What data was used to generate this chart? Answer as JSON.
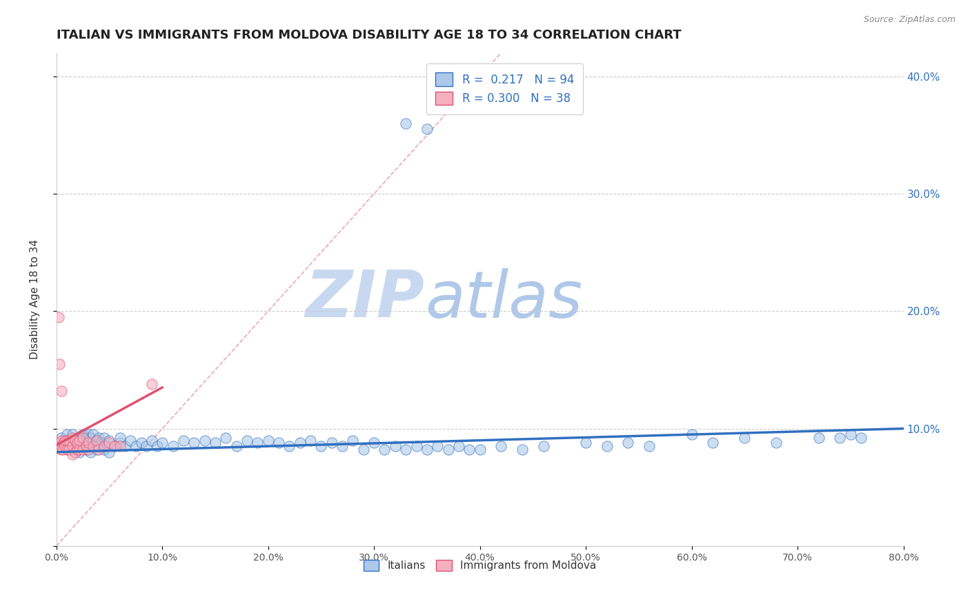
{
  "title": "ITALIAN VS IMMIGRANTS FROM MOLDOVA DISABILITY AGE 18 TO 34 CORRELATION CHART",
  "source": "Source: ZipAtlas.com",
  "xlabel": "",
  "ylabel": "Disability Age 18 to 34",
  "R_italian": 0.217,
  "N_italian": 94,
  "R_moldova": 0.3,
  "N_moldova": 38,
  "xlim": [
    0.0,
    0.8
  ],
  "ylim": [
    0.0,
    0.42
  ],
  "xticks": [
    0.0,
    0.1,
    0.2,
    0.3,
    0.4,
    0.5,
    0.6,
    0.7,
    0.8
  ],
  "yticks": [
    0.0,
    0.1,
    0.2,
    0.3,
    0.4
  ],
  "ytick_labels_right": [
    "",
    "10.0%",
    "20.0%",
    "30.0%",
    "40.0%"
  ],
  "xtick_labels": [
    "0.0%",
    "10.0%",
    "20.0%",
    "30.0%",
    "40.0%",
    "50.0%",
    "60.0%",
    "70.0%",
    "80.0%"
  ],
  "color_italian": "#adc8e8",
  "color_moldova": "#f5b0c0",
  "color_trend_italian": "#3070c0",
  "color_trend_moldova": "#e05070",
  "color_diag": "#e88090",
  "watermark_zip_color": "#c8d8f0",
  "watermark_atlas_color": "#b0c8e8",
  "title_color": "#222222",
  "bg_color": "#ffffff",
  "legend_label_color": "#3070c0",
  "bottom_legend_label_color": "#333333",
  "italian_scatter_x": [
    0.005,
    0.008,
    0.01,
    0.01,
    0.012,
    0.013,
    0.015,
    0.015,
    0.018,
    0.018,
    0.02,
    0.02,
    0.022,
    0.022,
    0.025,
    0.025,
    0.025,
    0.028,
    0.028,
    0.03,
    0.03,
    0.03,
    0.032,
    0.032,
    0.035,
    0.035,
    0.038,
    0.038,
    0.04,
    0.04,
    0.042,
    0.045,
    0.045,
    0.048,
    0.05,
    0.05,
    0.055,
    0.06,
    0.06,
    0.065,
    0.07,
    0.075,
    0.08,
    0.085,
    0.09,
    0.095,
    0.1,
    0.11,
    0.12,
    0.13,
    0.14,
    0.15,
    0.16,
    0.17,
    0.18,
    0.19,
    0.2,
    0.21,
    0.22,
    0.23,
    0.24,
    0.25,
    0.26,
    0.27,
    0.28,
    0.29,
    0.3,
    0.31,
    0.32,
    0.33,
    0.34,
    0.35,
    0.36,
    0.37,
    0.38,
    0.39,
    0.4,
    0.42,
    0.44,
    0.46,
    0.5,
    0.52,
    0.54,
    0.56,
    0.6,
    0.62,
    0.65,
    0.68,
    0.72,
    0.74,
    0.75,
    0.76,
    0.33,
    0.35
  ],
  "italian_scatter_y": [
    0.092,
    0.088,
    0.085,
    0.095,
    0.082,
    0.09,
    0.088,
    0.095,
    0.082,
    0.09,
    0.085,
    0.092,
    0.08,
    0.092,
    0.085,
    0.09,
    0.095,
    0.082,
    0.092,
    0.085,
    0.09,
    0.095,
    0.08,
    0.092,
    0.085,
    0.095,
    0.082,
    0.09,
    0.085,
    0.092,
    0.088,
    0.082,
    0.092,
    0.085,
    0.08,
    0.09,
    0.085,
    0.088,
    0.092,
    0.085,
    0.09,
    0.085,
    0.088,
    0.085,
    0.09,
    0.085,
    0.088,
    0.085,
    0.09,
    0.088,
    0.09,
    0.088,
    0.092,
    0.085,
    0.09,
    0.088,
    0.09,
    0.088,
    0.085,
    0.088,
    0.09,
    0.085,
    0.088,
    0.085,
    0.09,
    0.082,
    0.088,
    0.082,
    0.085,
    0.082,
    0.085,
    0.082,
    0.085,
    0.082,
    0.085,
    0.082,
    0.082,
    0.085,
    0.082,
    0.085,
    0.088,
    0.085,
    0.088,
    0.085,
    0.095,
    0.088,
    0.092,
    0.088,
    0.092,
    0.092,
    0.095,
    0.092,
    0.36,
    0.355
  ],
  "moldova_scatter_x": [
    0.002,
    0.003,
    0.004,
    0.005,
    0.005,
    0.006,
    0.007,
    0.008,
    0.008,
    0.01,
    0.01,
    0.012,
    0.012,
    0.015,
    0.015,
    0.015,
    0.018,
    0.018,
    0.02,
    0.02,
    0.022,
    0.022,
    0.025,
    0.025,
    0.028,
    0.03,
    0.03,
    0.035,
    0.038,
    0.04,
    0.045,
    0.05,
    0.055,
    0.06,
    0.002,
    0.003,
    0.005,
    0.09
  ],
  "moldova_scatter_y": [
    0.085,
    0.088,
    0.082,
    0.09,
    0.085,
    0.082,
    0.088,
    0.085,
    0.09,
    0.082,
    0.09,
    0.082,
    0.09,
    0.078,
    0.085,
    0.092,
    0.08,
    0.09,
    0.082,
    0.088,
    0.082,
    0.09,
    0.082,
    0.092,
    0.085,
    0.082,
    0.088,
    0.085,
    0.09,
    0.082,
    0.085,
    0.088,
    0.085,
    0.085,
    0.195,
    0.155,
    0.132,
    0.138
  ]
}
